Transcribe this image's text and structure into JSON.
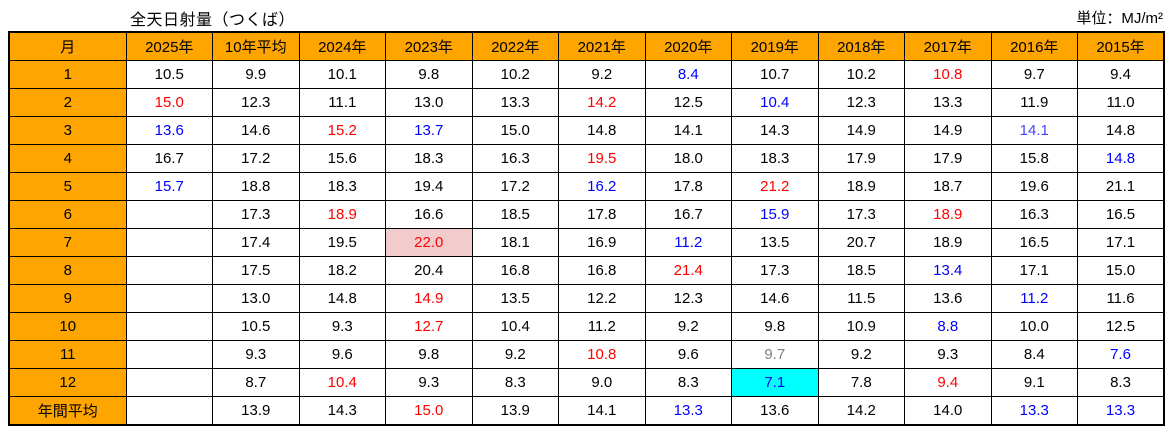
{
  "colors": {
    "header_bg": "#FFA500",
    "border": "#000000",
    "max_text": "#FF0000",
    "min_text": "#0000FF",
    "min_text_light": "#4444FF",
    "gray_text": "#808080",
    "max_cell_bg": "#F2CCCC",
    "min_cell_bg": "#00FFFF"
  },
  "chart_data": {
    "type": "table",
    "title": "全天日射量（つくば）",
    "unit_label": "単位：MJ/m²",
    "columns": [
      "月",
      "2025年",
      "10年平均",
      "2024年",
      "2023年",
      "2022年",
      "2021年",
      "2020年",
      "2019年",
      "2018年",
      "2017年",
      "2016年",
      "2015年"
    ],
    "rows": [
      {
        "label": "1",
        "cells": [
          {
            "v": "10.5"
          },
          {
            "v": "9.9"
          },
          {
            "v": "10.1"
          },
          {
            "v": "9.8"
          },
          {
            "v": "10.2"
          },
          {
            "v": "9.2"
          },
          {
            "v": "8.4",
            "c": "blue"
          },
          {
            "v": "10.7"
          },
          {
            "v": "10.2"
          },
          {
            "v": "10.8",
            "c": "red"
          },
          {
            "v": "9.7"
          },
          {
            "v": "9.4"
          }
        ]
      },
      {
        "label": "2",
        "cells": [
          {
            "v": "15.0",
            "c": "red"
          },
          {
            "v": "12.3"
          },
          {
            "v": "11.1"
          },
          {
            "v": "13.0"
          },
          {
            "v": "13.3"
          },
          {
            "v": "14.2",
            "c": "red"
          },
          {
            "v": "12.5"
          },
          {
            "v": "10.4",
            "c": "blue"
          },
          {
            "v": "12.3"
          },
          {
            "v": "13.3"
          },
          {
            "v": "11.9"
          },
          {
            "v": "11.0"
          }
        ]
      },
      {
        "label": "3",
        "cells": [
          {
            "v": "13.6",
            "c": "blue"
          },
          {
            "v": "14.6"
          },
          {
            "v": "15.2",
            "c": "red"
          },
          {
            "v": "13.7",
            "c": "blue"
          },
          {
            "v": "15.0"
          },
          {
            "v": "14.8"
          },
          {
            "v": "14.1"
          },
          {
            "v": "14.3"
          },
          {
            "v": "14.9"
          },
          {
            "v": "14.9"
          },
          {
            "v": "14.1",
            "c": "bluereg"
          },
          {
            "v": "14.8"
          }
        ]
      },
      {
        "label": "4",
        "cells": [
          {
            "v": "16.7"
          },
          {
            "v": "17.2"
          },
          {
            "v": "15.6"
          },
          {
            "v": "18.3"
          },
          {
            "v": "16.3"
          },
          {
            "v": "19.5",
            "c": "red"
          },
          {
            "v": "18.0"
          },
          {
            "v": "18.3"
          },
          {
            "v": "17.9"
          },
          {
            "v": "17.9"
          },
          {
            "v": "15.8"
          },
          {
            "v": "14.8",
            "c": "blue"
          }
        ]
      },
      {
        "label": "5",
        "cells": [
          {
            "v": "15.7",
            "c": "blue"
          },
          {
            "v": "18.8"
          },
          {
            "v": "18.3"
          },
          {
            "v": "19.4"
          },
          {
            "v": "17.2"
          },
          {
            "v": "16.2",
            "c": "blue"
          },
          {
            "v": "17.8"
          },
          {
            "v": "21.2",
            "c": "red"
          },
          {
            "v": "18.9"
          },
          {
            "v": "18.7"
          },
          {
            "v": "19.6"
          },
          {
            "v": "21.1"
          }
        ]
      },
      {
        "label": "6",
        "cells": [
          {
            "v": ""
          },
          {
            "v": "17.3"
          },
          {
            "v": "18.9",
            "c": "red"
          },
          {
            "v": "16.6"
          },
          {
            "v": "18.5"
          },
          {
            "v": "17.8"
          },
          {
            "v": "16.7"
          },
          {
            "v": "15.9",
            "c": "blue"
          },
          {
            "v": "17.3"
          },
          {
            "v": "18.9",
            "c": "red"
          },
          {
            "v": "16.3"
          },
          {
            "v": "16.5"
          }
        ]
      },
      {
        "label": "7",
        "cells": [
          {
            "v": ""
          },
          {
            "v": "17.4"
          },
          {
            "v": "19.5"
          },
          {
            "v": "22.0",
            "c": "red",
            "bg": "pink"
          },
          {
            "v": "18.1"
          },
          {
            "v": "16.9"
          },
          {
            "v": "11.2",
            "c": "blue"
          },
          {
            "v": "13.5"
          },
          {
            "v": "20.7"
          },
          {
            "v": "18.9"
          },
          {
            "v": "16.5"
          },
          {
            "v": "17.1"
          }
        ]
      },
      {
        "label": "8",
        "cells": [
          {
            "v": ""
          },
          {
            "v": "17.5"
          },
          {
            "v": "18.2"
          },
          {
            "v": "20.4"
          },
          {
            "v": "16.8"
          },
          {
            "v": "16.8"
          },
          {
            "v": "21.4",
            "c": "red"
          },
          {
            "v": "17.3"
          },
          {
            "v": "18.5"
          },
          {
            "v": "13.4",
            "c": "blue"
          },
          {
            "v": "17.1"
          },
          {
            "v": "15.0"
          }
        ]
      },
      {
        "label": "9",
        "cells": [
          {
            "v": ""
          },
          {
            "v": "13.0"
          },
          {
            "v": "14.8"
          },
          {
            "v": "14.9",
            "c": "red"
          },
          {
            "v": "13.5"
          },
          {
            "v": "12.2"
          },
          {
            "v": "12.3"
          },
          {
            "v": "14.6"
          },
          {
            "v": "11.5"
          },
          {
            "v": "13.6"
          },
          {
            "v": "11.2",
            "c": "blue"
          },
          {
            "v": "11.6"
          }
        ]
      },
      {
        "label": "10",
        "cells": [
          {
            "v": ""
          },
          {
            "v": "10.5"
          },
          {
            "v": "9.3"
          },
          {
            "v": "12.7",
            "c": "red"
          },
          {
            "v": "10.4"
          },
          {
            "v": "11.2"
          },
          {
            "v": "9.2"
          },
          {
            "v": "9.8"
          },
          {
            "v": "10.9"
          },
          {
            "v": "8.8",
            "c": "blue"
          },
          {
            "v": "10.0"
          },
          {
            "v": "12.5"
          }
        ]
      },
      {
        "label": "11",
        "cells": [
          {
            "v": ""
          },
          {
            "v": "9.3"
          },
          {
            "v": "9.6"
          },
          {
            "v": "9.8"
          },
          {
            "v": "9.2"
          },
          {
            "v": "10.8",
            "c": "red"
          },
          {
            "v": "9.6"
          },
          {
            "v": "9.7",
            "c": "gray"
          },
          {
            "v": "9.2"
          },
          {
            "v": "9.3"
          },
          {
            "v": "8.4"
          },
          {
            "v": "7.6",
            "c": "blue"
          }
        ]
      },
      {
        "label": "12",
        "cells": [
          {
            "v": ""
          },
          {
            "v": "8.7"
          },
          {
            "v": "10.4",
            "c": "red"
          },
          {
            "v": "9.3"
          },
          {
            "v": "8.3"
          },
          {
            "v": "9.0"
          },
          {
            "v": "8.3"
          },
          {
            "v": "7.1",
            "c": "blue",
            "bg": "cyan"
          },
          {
            "v": "7.8"
          },
          {
            "v": "9.4",
            "c": "red"
          },
          {
            "v": "9.1"
          },
          {
            "v": "8.3"
          }
        ]
      },
      {
        "label": "年間平均",
        "cells": [
          {
            "v": ""
          },
          {
            "v": "13.9"
          },
          {
            "v": "14.3"
          },
          {
            "v": "15.0",
            "c": "red"
          },
          {
            "v": "13.9"
          },
          {
            "v": "14.1"
          },
          {
            "v": "13.3",
            "c": "blue"
          },
          {
            "v": "13.6"
          },
          {
            "v": "14.2"
          },
          {
            "v": "14.0"
          },
          {
            "v": "13.3",
            "c": "blue"
          },
          {
            "v": "13.3",
            "c": "blue"
          }
        ]
      }
    ]
  }
}
